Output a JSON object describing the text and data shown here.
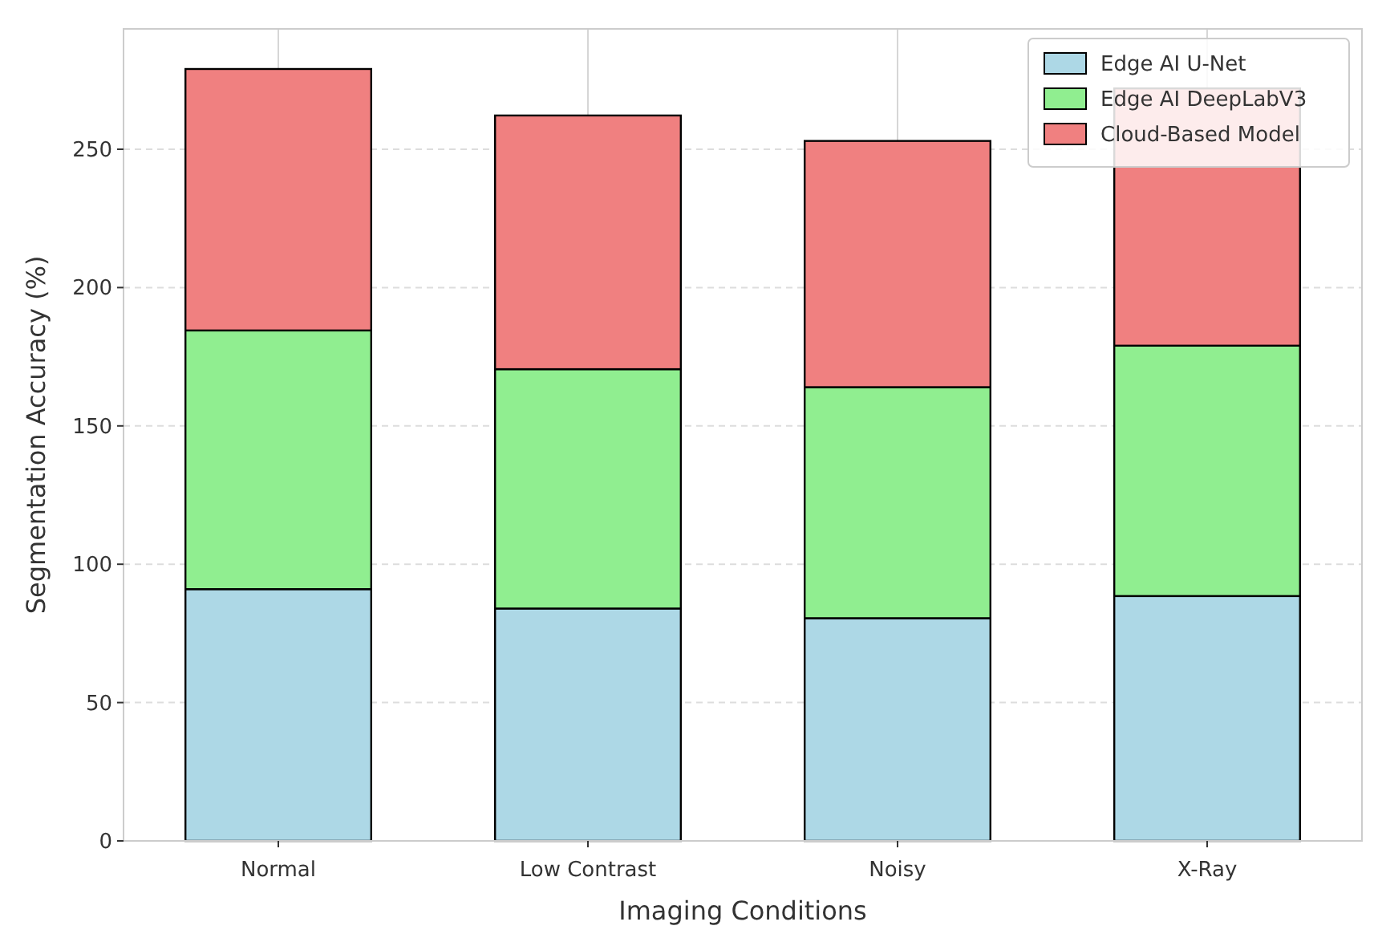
{
  "chart_data": {
    "type": "bar",
    "stacked": true,
    "xlabel": "Imaging Conditions",
    "ylabel": "Segmentation Accuracy (%)",
    "categories": [
      "Normal",
      "Low Contrast",
      "Noisy",
      "X-Ray"
    ],
    "series": [
      {
        "name": "Edge AI U-Net",
        "color": "#add8e6",
        "values": [
          91,
          84,
          80.5,
          88.5
        ]
      },
      {
        "name": "Edge AI DeepLabV3",
        "color": "#90ee90",
        "values": [
          93.5,
          86.5,
          83.5,
          90.5
        ]
      },
      {
        "name": "Cloud-Based Model",
        "color": "#f08080",
        "values": [
          94.5,
          91.7,
          89,
          93
        ]
      }
    ],
    "ylim": [
      0,
      293.5
    ],
    "yticks": [
      0,
      50,
      100,
      150,
      200,
      250
    ],
    "grid": true,
    "legend": "top right"
  }
}
